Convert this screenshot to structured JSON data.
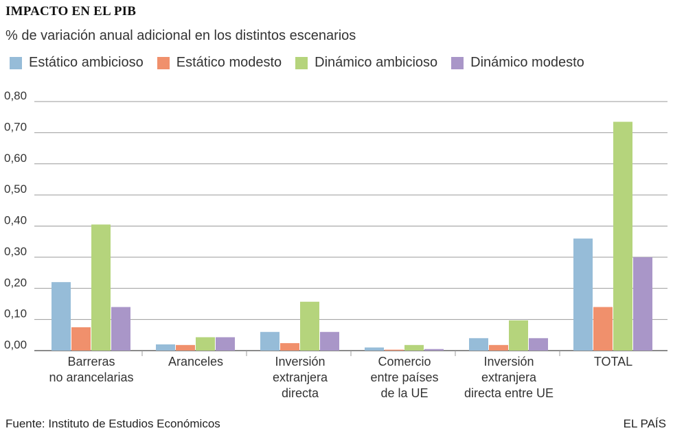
{
  "header": {
    "title": "IMPACTO EN EL PIB",
    "subtitle": "% de variación anual adicional en los distintos escenarios"
  },
  "footer": {
    "source": "Fuente: Instituto de Estudios Económicos",
    "brand": "EL PAÍS"
  },
  "chart_data": {
    "type": "bar",
    "title": "IMPACTO EN EL PIB",
    "subtitle": "% de variación anual adicional en los distintos escenarios",
    "ylim": [
      0,
      0.8
    ],
    "yticks": [
      "0,00",
      "0,10",
      "0,20",
      "0,30",
      "0,40",
      "0,50",
      "0,60",
      "0,70",
      "0,80"
    ],
    "grid": true,
    "legend_position": "top",
    "categories": [
      [
        "Barreras",
        "no arancelarias"
      ],
      [
        "Aranceles"
      ],
      [
        "Inversión",
        "extranjera",
        "directa"
      ],
      [
        "Comercio",
        "entre países",
        "de la UE"
      ],
      [
        "Inversión",
        "extranjera",
        "directa entre UE"
      ],
      [
        "TOTAL"
      ]
    ],
    "series": [
      {
        "name": "Estático ambicioso",
        "color": "#96bcd8",
        "values": [
          0.22,
          0.02,
          0.06,
          0.01,
          0.04,
          0.36
        ]
      },
      {
        "name": "Estático modesto",
        "color": "#f0906c",
        "values": [
          0.075,
          0.018,
          0.024,
          0.003,
          0.018,
          0.14
        ]
      },
      {
        "name": "Dinámico ambicioso",
        "color": "#b5d47c",
        "values": [
          0.405,
          0.043,
          0.157,
          0.018,
          0.097,
          0.735
        ]
      },
      {
        "name": "Dinámico modesto",
        "color": "#a996c8",
        "values": [
          0.14,
          0.043,
          0.06,
          0.005,
          0.04,
          0.3
        ]
      }
    ]
  }
}
